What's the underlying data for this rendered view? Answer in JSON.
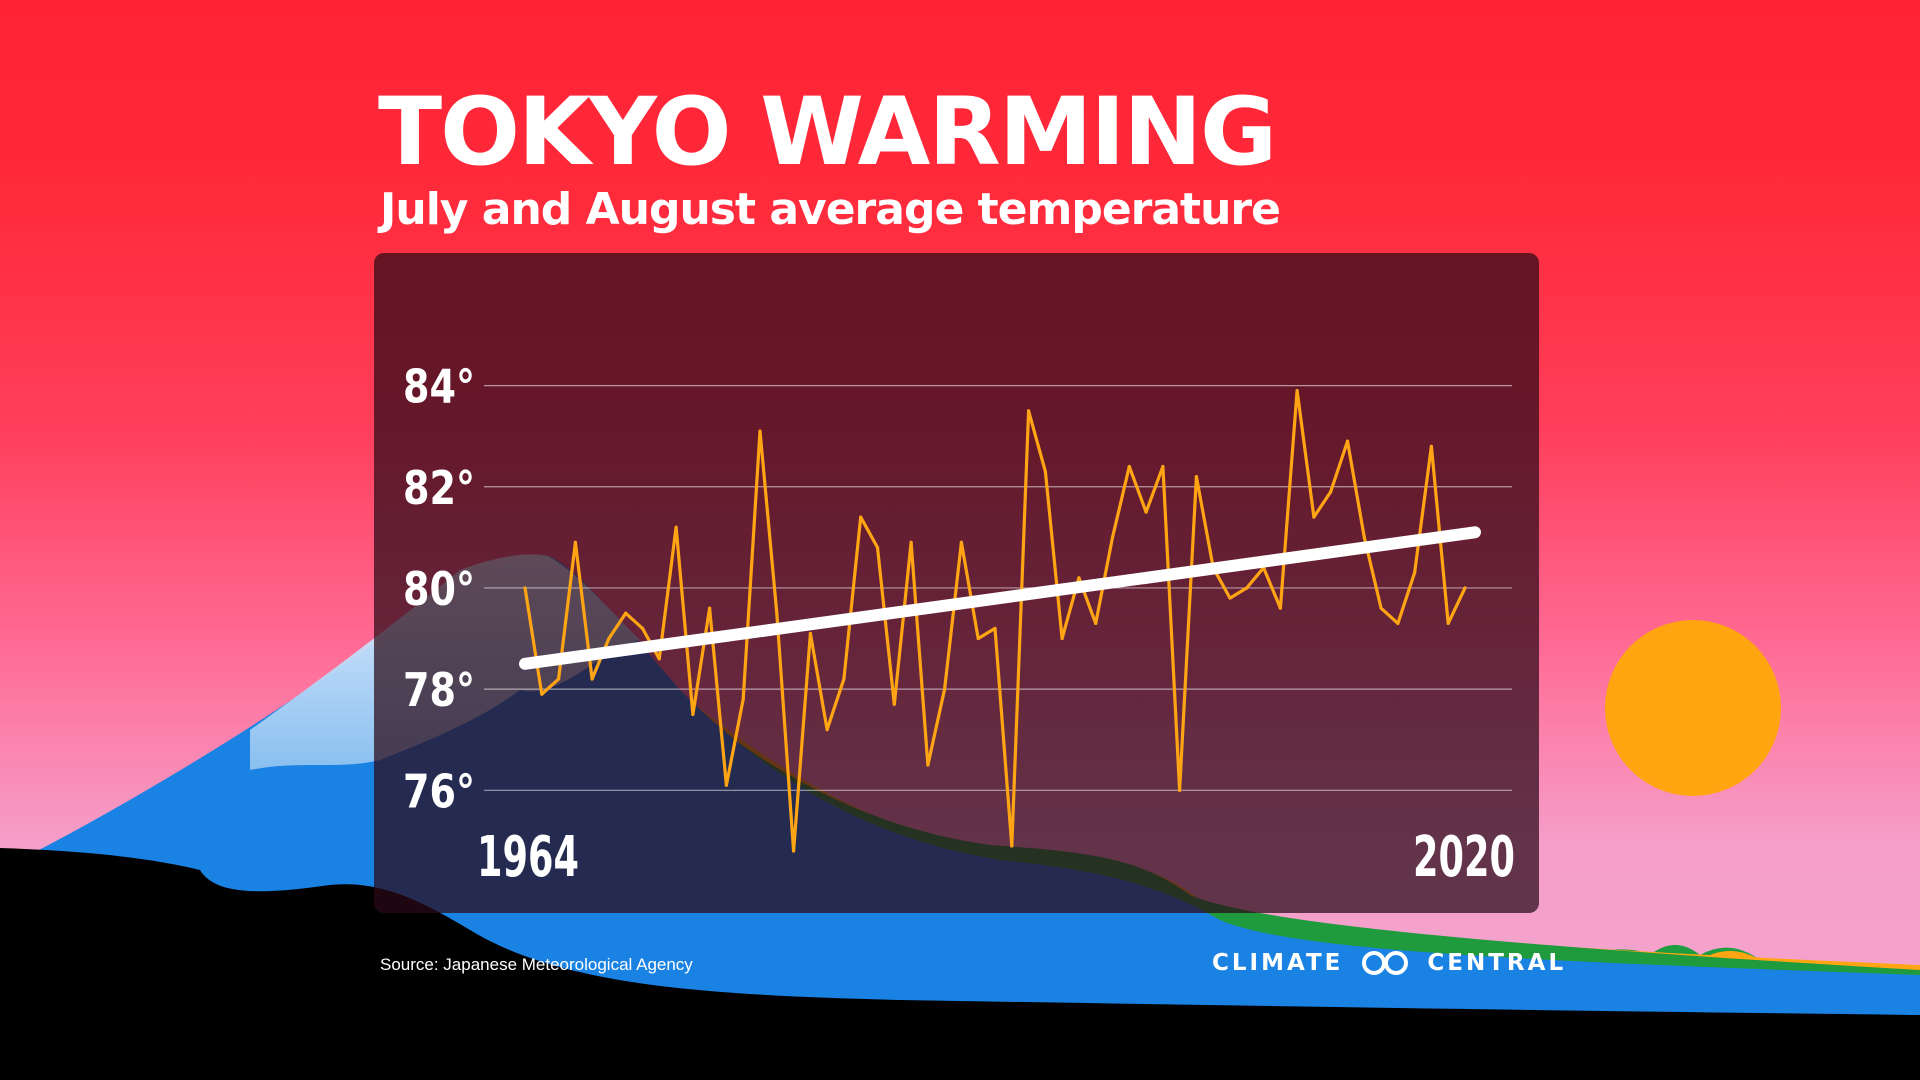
{
  "title": "TOKYO WARMING",
  "subtitle": "July and August average temperature",
  "source": "Source: Japanese Meteorological Agency",
  "brand": {
    "left": "CLIMATE",
    "right": "CENTRAL",
    "logo_icon": "climate-central-rings-icon"
  },
  "colors": {
    "sky_top": "#ff2235",
    "sky_bottom": "#f2a6cf",
    "sun": "#ffa50f",
    "series_line": "#ffa514",
    "trend_line": "#ffffff",
    "mountain_blue": "#1a82e3",
    "ground": "#000000"
  },
  "chart_data": {
    "type": "line",
    "title": "TOKYO WARMING",
    "subtitle": "July and August average temperature",
    "xlabel": "",
    "ylabel": "",
    "xlim": [
      1964,
      2020
    ],
    "ylim": [
      74.8,
      85
    ],
    "grid": true,
    "yticks": [
      84,
      82,
      80,
      78,
      76
    ],
    "ytick_labels": [
      "84°",
      "82°",
      "80°",
      "78°",
      "76°"
    ],
    "xtick_labels": [
      "1964",
      "2020"
    ],
    "x": [
      1964,
      1965,
      1966,
      1967,
      1968,
      1969,
      1970,
      1971,
      1972,
      1973,
      1974,
      1975,
      1976,
      1977,
      1978,
      1979,
      1980,
      1981,
      1982,
      1983,
      1984,
      1985,
      1986,
      1987,
      1988,
      1989,
      1990,
      1991,
      1992,
      1993,
      1994,
      1995,
      1996,
      1997,
      1998,
      1999,
      2000,
      2001,
      2002,
      2003,
      2004,
      2005,
      2006,
      2007,
      2008,
      2009,
      2010,
      2011,
      2012,
      2013,
      2014,
      2015,
      2016,
      2017,
      2018,
      2019,
      2020
    ],
    "series": [
      {
        "name": "July and August average temperature",
        "values": [
          80.0,
          77.9,
          78.2,
          80.9,
          78.2,
          79.0,
          79.5,
          79.2,
          78.6,
          81.2,
          77.5,
          79.6,
          76.1,
          77.8,
          83.1,
          79.5,
          74.8,
          79.1,
          77.2,
          78.2,
          81.4,
          80.8,
          77.7,
          80.9,
          76.5,
          78.0,
          80.9,
          79.0,
          79.2,
          74.9,
          83.5,
          82.3,
          79.0,
          80.2,
          79.3,
          81.0,
          82.4,
          81.5,
          82.4,
          76.0,
          82.2,
          80.4,
          79.8,
          80.0,
          80.4,
          79.6,
          83.9,
          81.4,
          81.9,
          82.9,
          81.0,
          79.6,
          79.3,
          80.3,
          82.8,
          79.3,
          80.0
        ]
      },
      {
        "name": "Trend",
        "values_at_endpoints": [
          78.5,
          81.1
        ]
      }
    ]
  }
}
